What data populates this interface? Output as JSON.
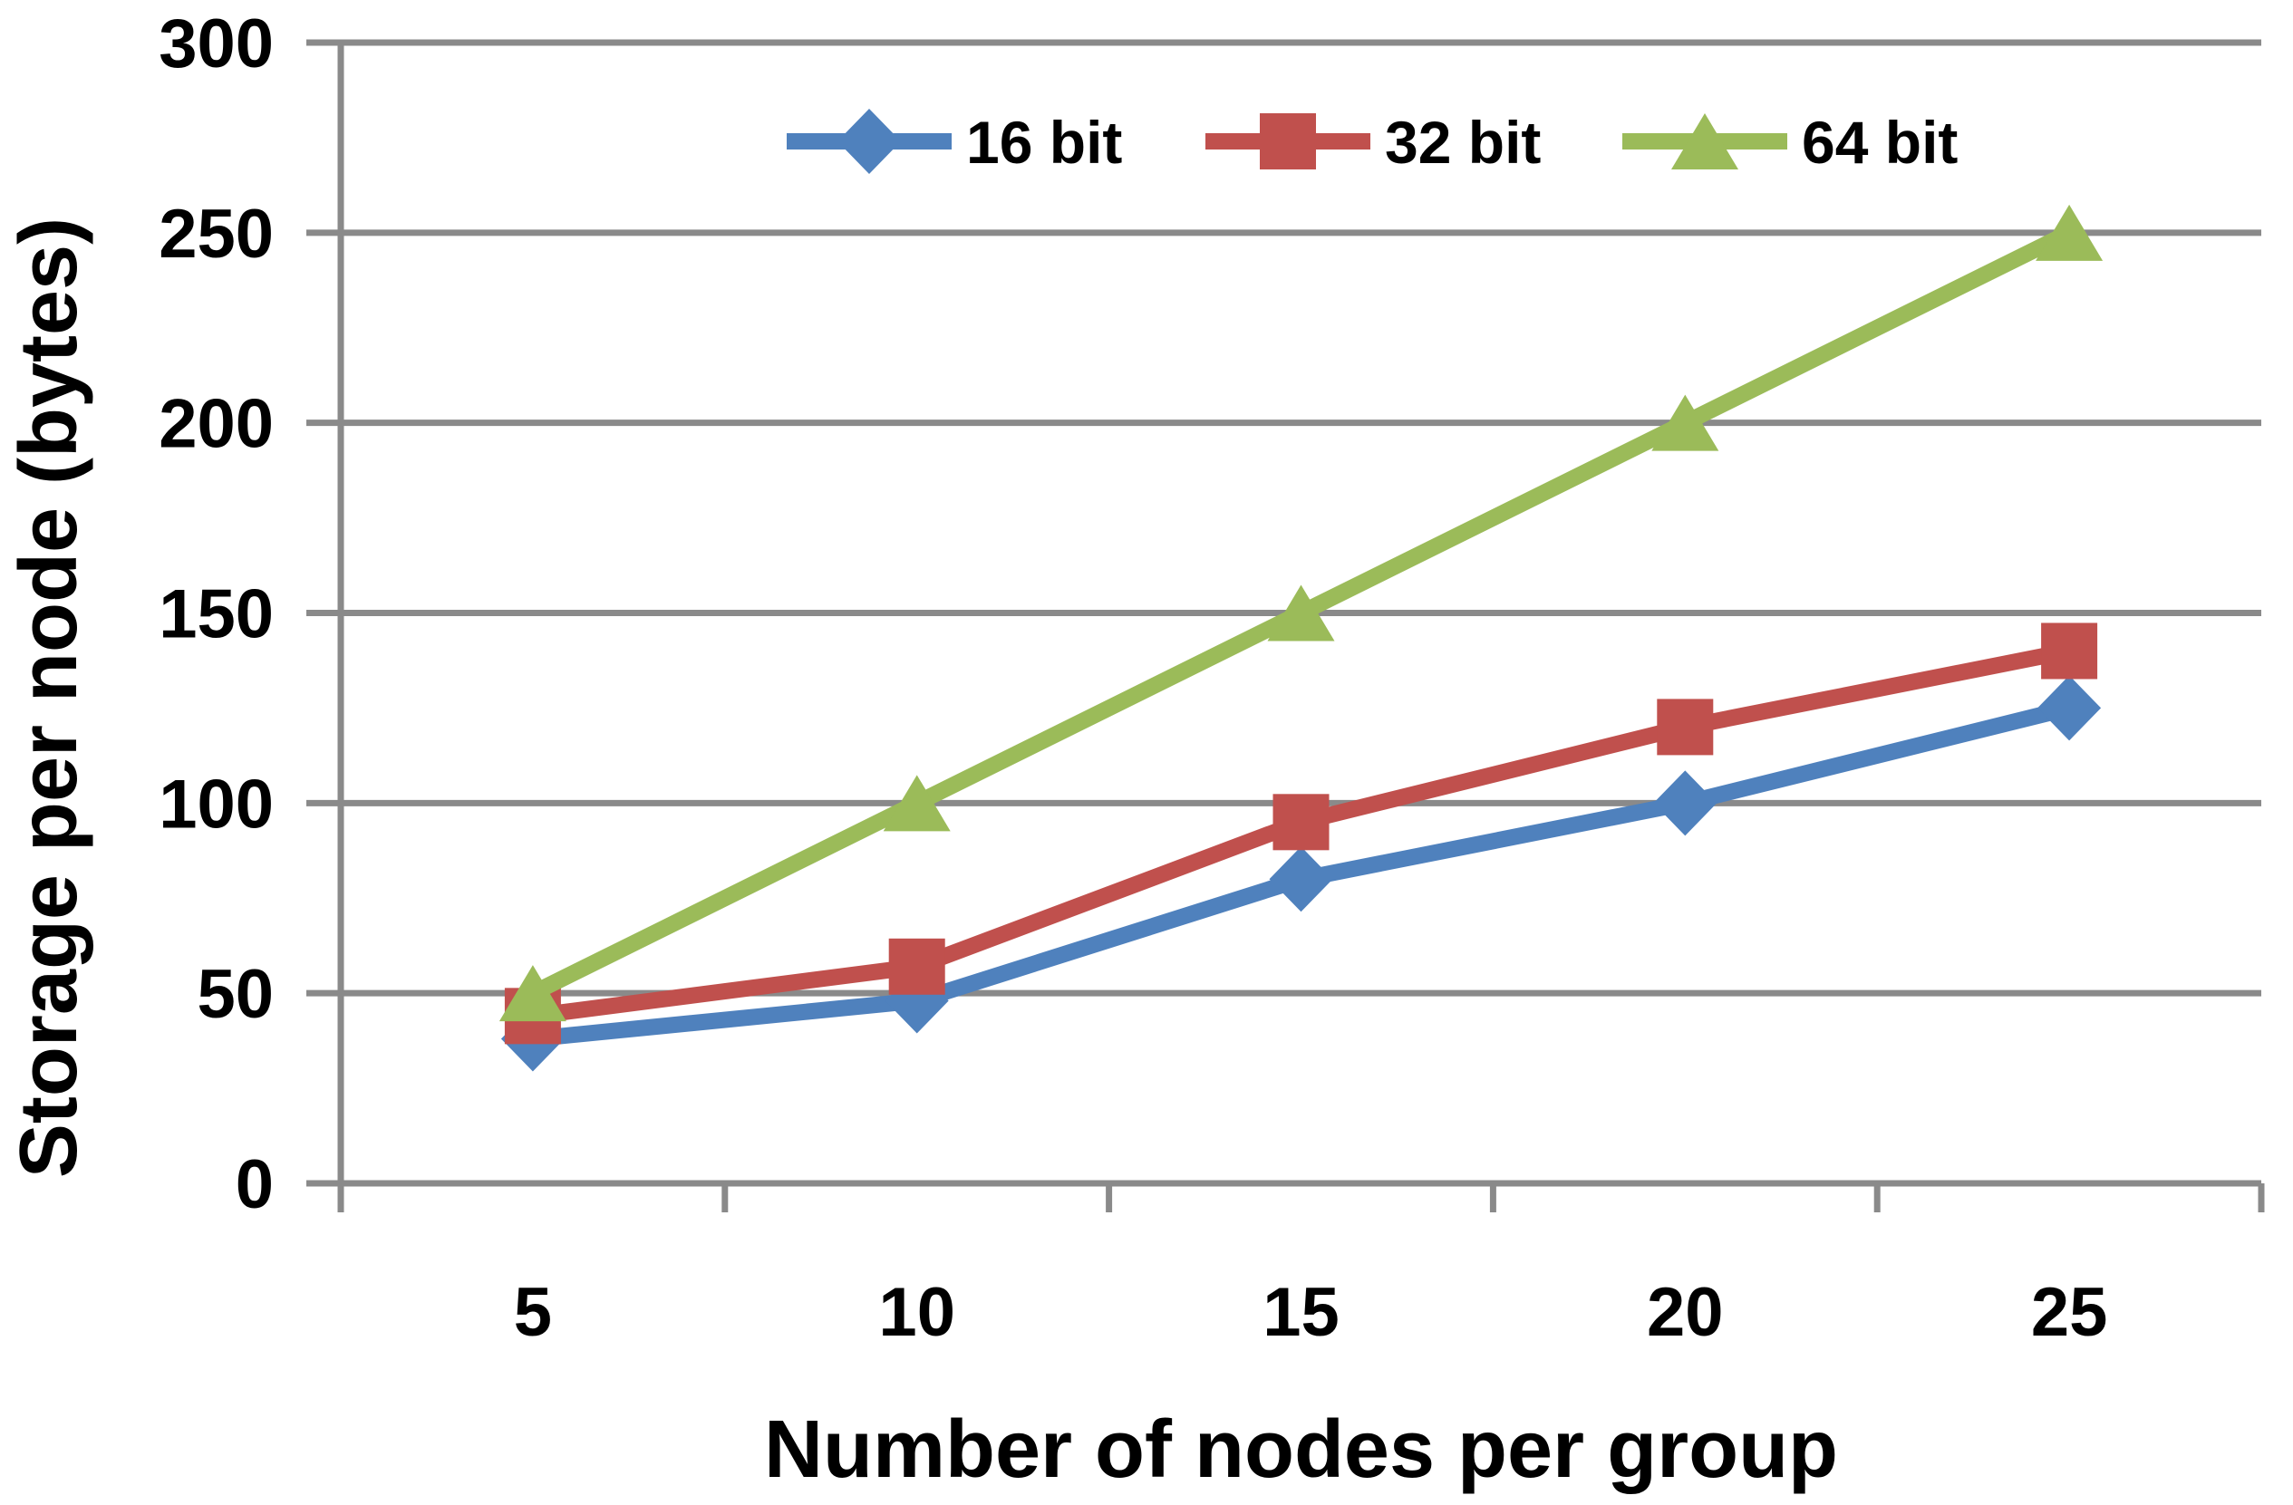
{
  "chart_data": {
    "type": "line",
    "title": "",
    "xlabel": "Number of nodes per group",
    "ylabel": "Storage per node (bytes)",
    "categories": [
      5,
      10,
      15,
      20,
      25
    ],
    "series": [
      {
        "name": "16 bit",
        "marker": "diamond",
        "color": "#4F81BD",
        "values": [
          38,
          48,
          80,
          100,
          125
        ]
      },
      {
        "name": "32 bit",
        "marker": "square",
        "color": "#C0504D",
        "values": [
          44,
          57,
          95,
          120,
          140
        ]
      },
      {
        "name": "64 bit",
        "marker": "triangle",
        "color": "#9BBB59",
        "values": [
          50,
          100,
          150,
          200,
          250
        ]
      }
    ],
    "y_ticks": [
      0,
      50,
      100,
      150,
      200,
      250,
      300
    ],
    "ylim": [
      0,
      300
    ],
    "grid": true,
    "vertical_gridlines": false,
    "legend_position": "top-center",
    "gridline_color": "#8A8A8A",
    "axis_color": "#8A8A8A",
    "text_color": "#000000",
    "background": "#FFFFFF"
  }
}
